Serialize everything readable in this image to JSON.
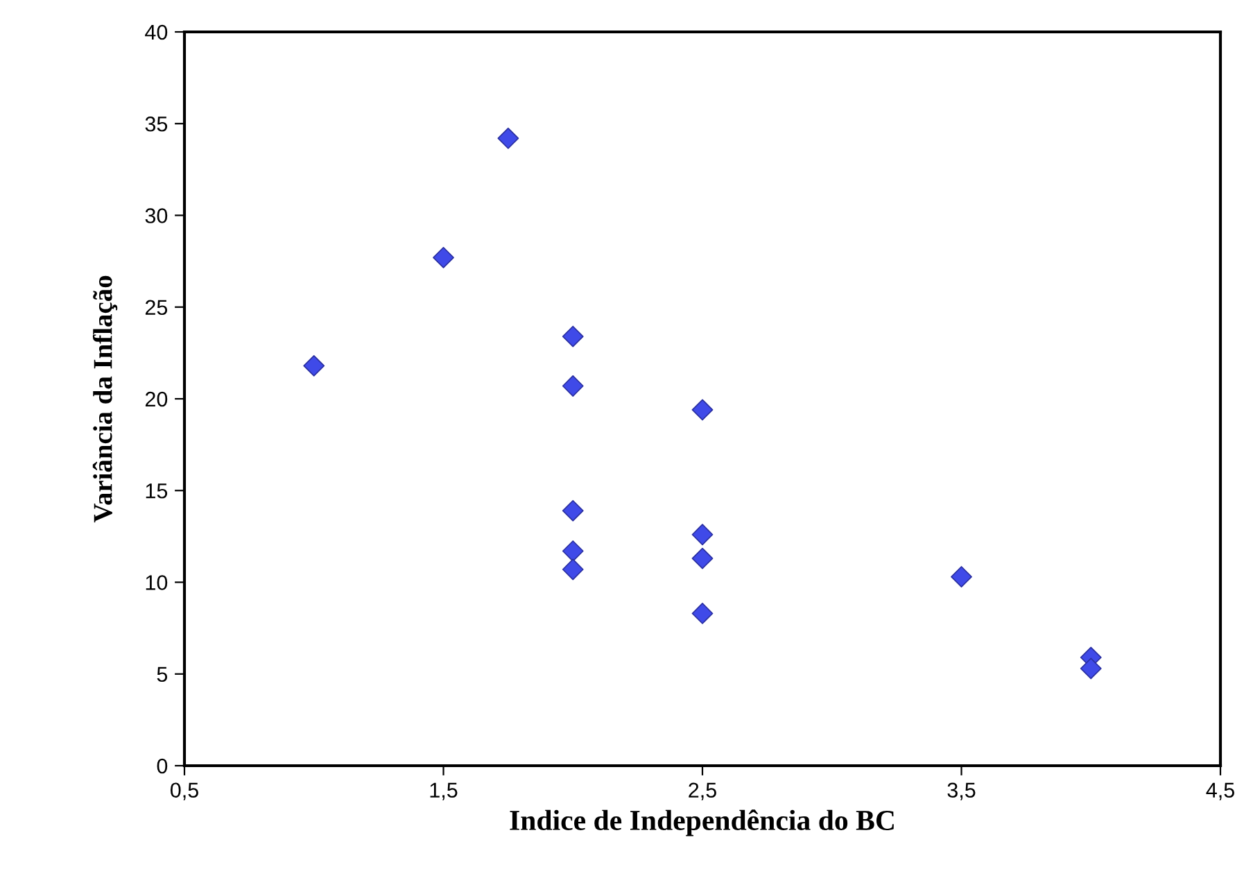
{
  "chart_data": {
    "type": "scatter",
    "xlabel": "Indice de Independência do BC",
    "ylabel": "Variância da Inflação",
    "x": [
      1.0,
      1.5,
      1.75,
      2.0,
      2.0,
      2.0,
      2.0,
      2.0,
      2.5,
      2.5,
      2.5,
      2.5,
      3.5,
      4.0,
      4.0
    ],
    "values": [
      21.8,
      27.7,
      34.2,
      23.4,
      20.7,
      13.9,
      11.7,
      10.7,
      19.4,
      12.6,
      11.3,
      8.3,
      10.3,
      5.9,
      5.3
    ],
    "color": "#3f4ae8",
    "marker": "diamond",
    "grid": false,
    "legend": false,
    "xlim": [
      0.5,
      4.5
    ],
    "xticks": [
      {
        "value": 0.5,
        "label": "0,5"
      },
      {
        "value": 1.5,
        "label": "1,5"
      },
      {
        "value": 2.5,
        "label": "2,5"
      },
      {
        "value": 3.5,
        "label": "3,5"
      },
      {
        "value": 4.5,
        "label": "4,5"
      }
    ],
    "ylim": [
      0,
      40
    ],
    "yticks": [
      0,
      5,
      10,
      15,
      20,
      25,
      30,
      35,
      40
    ]
  }
}
